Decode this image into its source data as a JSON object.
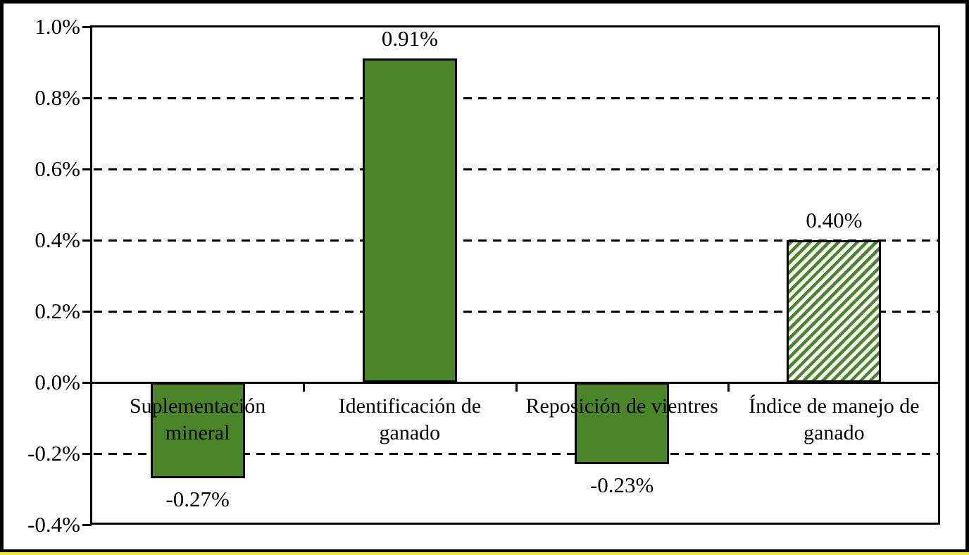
{
  "figure": {
    "background": "#ffffff",
    "frame_border_color": "#000000",
    "bottom_accent_color": "#f2ee15"
  },
  "chart_data": {
    "type": "bar",
    "title": "",
    "xlabel": "",
    "ylabel": "",
    "categories": [
      "Suplementación mineral",
      "Identificación de ganado",
      "Reposición de vientres",
      "Índice de manejo de ganado"
    ],
    "category_lines": [
      [
        "Suplementación",
        "mineral"
      ],
      [
        "Identificación de",
        "ganado"
      ],
      [
        "Reposición de vientres"
      ],
      [
        "Índice de manejo de",
        "ganado"
      ]
    ],
    "values": [
      -0.27,
      0.91,
      -0.23,
      0.4
    ],
    "value_labels": [
      "-0.27%",
      "0.91%",
      "-0.23%",
      "0.40%"
    ],
    "unit": "%",
    "bar_styles": [
      "solid",
      "solid",
      "solid",
      "hatched"
    ],
    "ylim": [
      -0.4,
      1.0
    ],
    "ytick_step": 0.2,
    "ytick_labels": [
      "1.0%",
      "0.8%",
      "0.6%",
      "0.4%",
      "0.2%",
      "0.0%",
      "-0.2%",
      "-0.4%"
    ],
    "grid": "horizontal-dashed",
    "legend": "none",
    "colors": {
      "bar_fill": "#4a8529",
      "bar_border": "#000000",
      "hatch_background": "#ffffff",
      "axis": "#000000",
      "text": "#000000"
    }
  }
}
